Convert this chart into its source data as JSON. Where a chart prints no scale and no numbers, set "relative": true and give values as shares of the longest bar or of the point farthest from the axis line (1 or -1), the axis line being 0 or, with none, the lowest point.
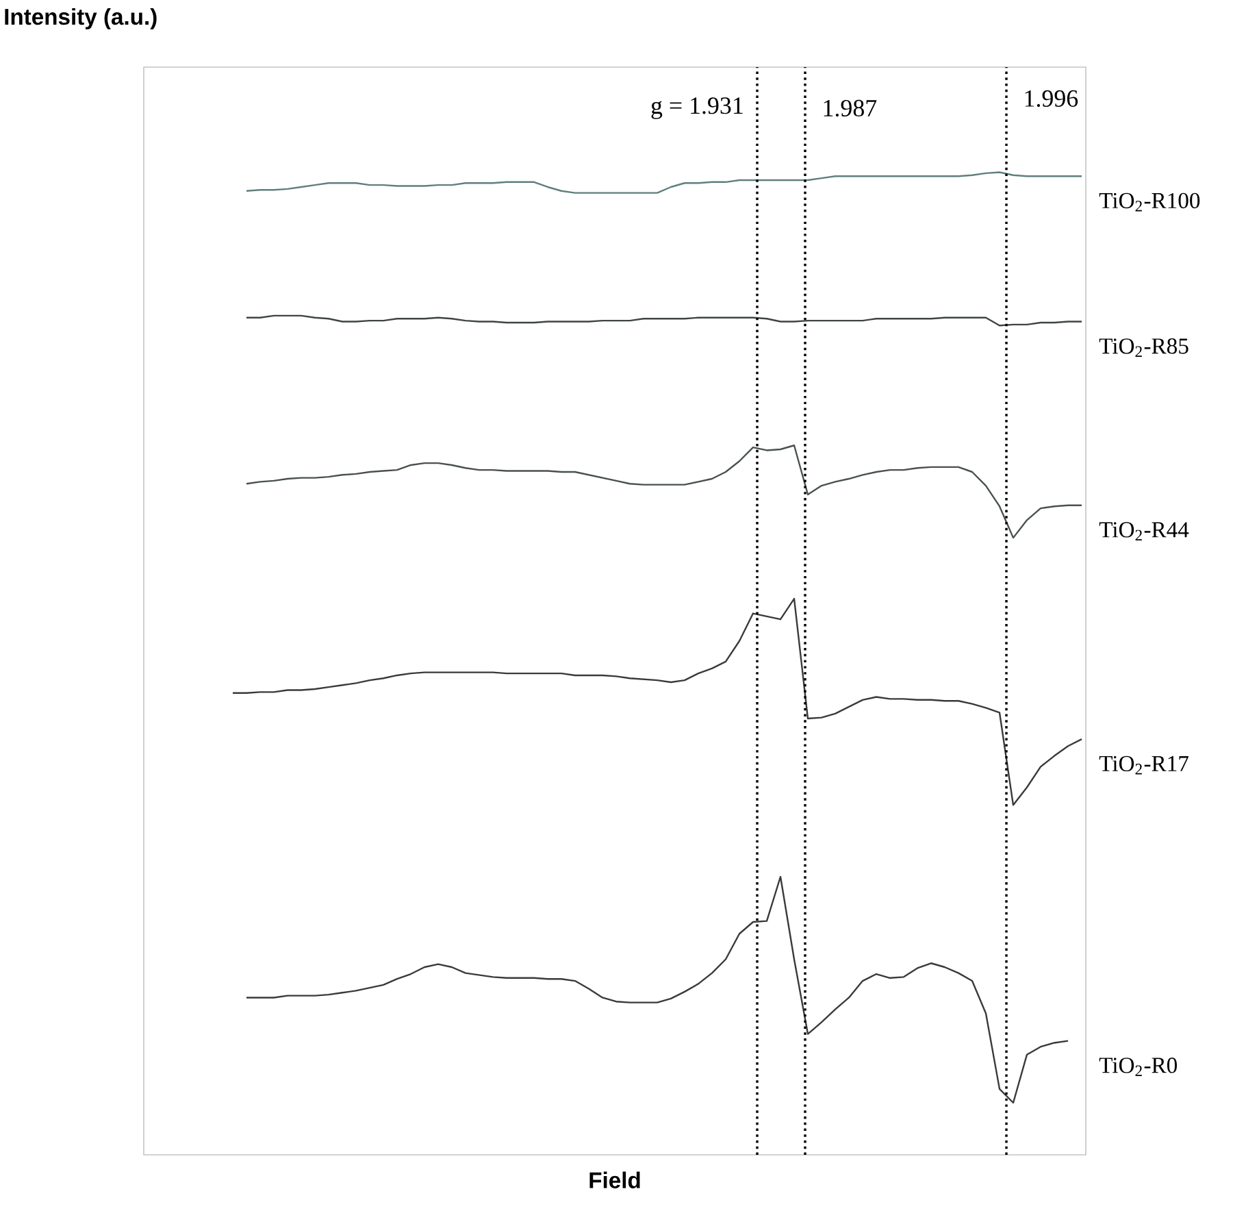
{
  "chart_data": {
    "type": "line",
    "relative": true,
    "xlabel": "Field",
    "marker": "none",
    "line_style": "solid",
    "annotations": [
      "Intensity (a.u.)",
      "g = 1.931",
      "1.987",
      "1.996"
    ],
    "categories": [
      null,
      null,
      null,
      null,
      null,
      null,
      null,
      null,
      null,
      null,
      null,
      null,
      null,
      null,
      null,
      null,
      null,
      null,
      null,
      null,
      null,
      null,
      null,
      null,
      null,
      null,
      null,
      null,
      null,
      null,
      null,
      null,
      null,
      null,
      null,
      null,
      null,
      null,
      null,
      null,
      null,
      null,
      null,
      null,
      null,
      null,
      null,
      null,
      null,
      null,
      null,
      null,
      null,
      null,
      null,
      null,
      null,
      null,
      null,
      null,
      null,
      null,
      null
    ],
    "series": [
      {
        "name": "TiO$_{2}$-R100",
        "color": "#5f7f7d",
        "values": [
          null,
          0.981,
          0.982,
          0.982,
          0.983,
          0.985,
          0.987,
          0.989,
          0.989,
          0.989,
          0.987,
          0.987,
          0.986,
          0.986,
          0.986,
          0.987,
          0.987,
          0.989,
          0.989,
          0.989,
          0.99,
          0.99,
          0.99,
          0.985,
          0.981,
          0.979,
          0.979,
          0.979,
          0.979,
          0.979,
          0.979,
          0.979,
          0.985,
          0.989,
          0.989,
          0.99,
          0.99,
          0.992,
          0.992,
          0.992,
          0.992,
          0.992,
          0.992,
          0.994,
          0.996,
          0.996,
          0.996,
          0.996,
          0.996,
          0.996,
          0.996,
          0.996,
          0.996,
          0.996,
          0.997,
          0.999,
          1.0,
          0.997,
          0.996,
          0.996,
          0.996,
          0.996,
          0.996
        ]
      },
      {
        "name": "TiO$_{2}$-R85",
        "color": "#3f4444",
        "values": [
          null,
          0.852,
          0.852,
          0.854,
          0.854,
          0.854,
          0.852,
          0.851,
          0.848,
          0.848,
          0.849,
          0.849,
          0.851,
          0.851,
          0.851,
          0.852,
          0.851,
          0.849,
          0.848,
          0.848,
          0.847,
          0.847,
          0.847,
          0.848,
          0.848,
          0.848,
          0.848,
          0.849,
          0.849,
          0.849,
          0.851,
          0.851,
          0.851,
          0.851,
          0.852,
          0.852,
          0.852,
          0.852,
          0.852,
          0.851,
          0.848,
          0.848,
          0.849,
          0.849,
          0.849,
          0.849,
          0.849,
          0.851,
          0.851,
          0.851,
          0.851,
          0.851,
          0.852,
          0.852,
          0.852,
          0.852,
          0.844,
          0.845,
          0.845,
          0.847,
          0.847,
          0.848,
          0.848
        ]
      },
      {
        "name": "TiO$_{2}$-R44",
        "color": "#4a5050",
        "values": [
          null,
          0.683,
          0.685,
          0.686,
          0.688,
          0.689,
          0.689,
          0.69,
          0.692,
          0.693,
          0.695,
          0.696,
          0.697,
          0.702,
          0.704,
          0.704,
          0.702,
          0.699,
          0.697,
          0.697,
          0.696,
          0.696,
          0.696,
          0.696,
          0.695,
          0.695,
          0.692,
          0.689,
          0.686,
          0.683,
          0.682,
          0.682,
          0.682,
          0.682,
          0.685,
          0.688,
          0.695,
          0.706,
          0.72,
          0.717,
          0.718,
          0.722,
          0.672,
          0.681,
          0.685,
          0.688,
          0.692,
          0.695,
          0.697,
          0.697,
          0.699,
          0.7,
          0.7,
          0.7,
          0.695,
          0.681,
          0.66,
          0.628,
          0.646,
          0.658,
          0.66,
          0.661,
          0.661
        ]
      },
      {
        "name": "TiO$_{2}$-R17",
        "color": "#3a3a3a",
        "values": [
          0.47,
          0.47,
          0.471,
          0.471,
          0.473,
          0.473,
          0.474,
          0.476,
          0.478,
          0.48,
          0.483,
          0.485,
          0.488,
          0.49,
          0.491,
          0.491,
          0.491,
          0.491,
          0.491,
          0.491,
          0.49,
          0.49,
          0.49,
          0.49,
          0.49,
          0.488,
          0.488,
          0.488,
          0.487,
          0.485,
          0.484,
          0.483,
          0.481,
          0.483,
          0.49,
          0.495,
          0.502,
          0.523,
          0.551,
          0.548,
          0.545,
          0.566,
          0.444,
          0.445,
          0.449,
          0.456,
          0.463,
          0.466,
          0.464,
          0.464,
          0.463,
          0.463,
          0.462,
          0.462,
          0.459,
          0.455,
          0.45,
          0.356,
          0.374,
          0.395,
          0.406,
          0.416,
          0.423
        ]
      },
      {
        "name": "TiO$_{2}$-R0",
        "color": "#3a3a3a",
        "values": [
          null,
          0.16,
          0.16,
          0.16,
          0.162,
          0.162,
          0.162,
          0.163,
          0.165,
          0.167,
          0.17,
          0.173,
          0.179,
          0.184,
          0.191,
          0.194,
          0.191,
          0.185,
          0.183,
          0.181,
          0.18,
          0.18,
          0.18,
          0.179,
          0.179,
          0.177,
          0.169,
          0.16,
          0.156,
          0.155,
          0.155,
          0.155,
          0.159,
          0.166,
          0.174,
          0.185,
          0.199,
          0.225,
          0.237,
          0.238,
          0.283,
          0.199,
          0.123,
          0.135,
          0.148,
          0.16,
          0.177,
          0.184,
          0.18,
          0.181,
          0.19,
          0.195,
          0.191,
          0.185,
          0.177,
          0.144,
          0.067,
          0.053,
          0.102,
          0.11,
          0.114,
          0.116,
          null
        ]
      }
    ]
  }
}
